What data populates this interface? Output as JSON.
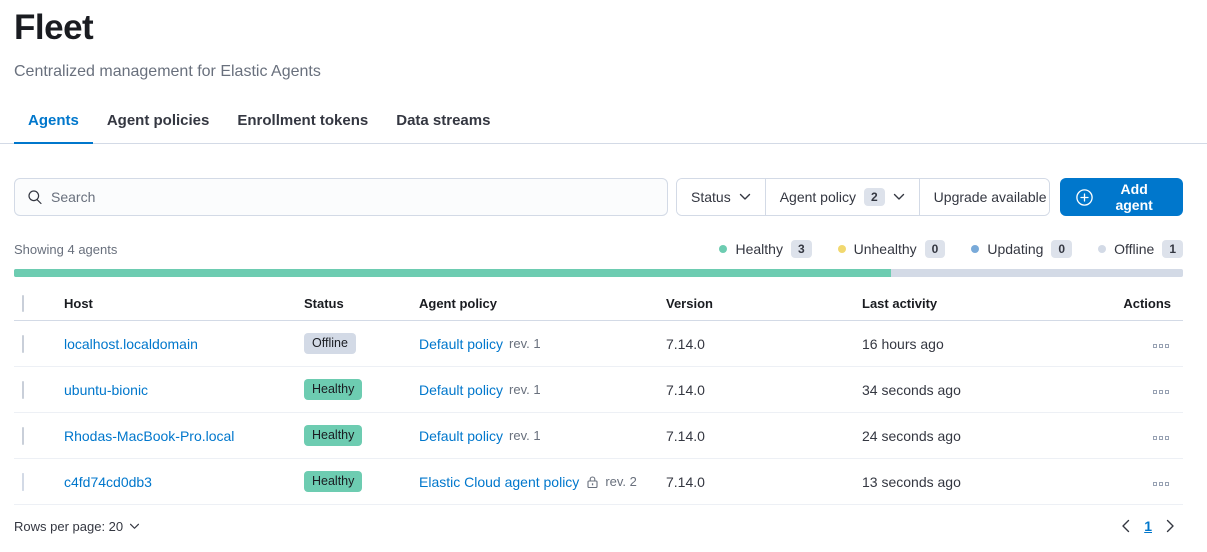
{
  "colors": {
    "primary": "#0077cc",
    "healthy": "#6dccb1",
    "unhealthy": "#f1d86f",
    "updating": "#79aad9",
    "offline": "#d3dae6",
    "progress_track": "#d3dae6"
  },
  "header": {
    "title": "Fleet",
    "subtitle": "Centralized management for Elastic Agents",
    "tabs": [
      {
        "label": "Agents",
        "active": true
      },
      {
        "label": "Agent policies",
        "active": false
      },
      {
        "label": "Enrollment tokens",
        "active": false
      },
      {
        "label": "Data streams",
        "active": false
      }
    ]
  },
  "toolbar": {
    "search_placeholder": "Search",
    "filters": [
      {
        "label": "Status",
        "has_chevron": true
      },
      {
        "label": "Agent policy",
        "count": "2",
        "has_chevron": true
      },
      {
        "label": "Upgrade available",
        "has_chevron": false
      }
    ],
    "add_agent_label": "Add agent"
  },
  "summary": {
    "showing_text": "Showing 4 agents",
    "legend": [
      {
        "label": "Healthy",
        "count": "3",
        "color": "#6dccb1"
      },
      {
        "label": "Unhealthy",
        "count": "0",
        "color": "#f1d86f"
      },
      {
        "label": "Updating",
        "count": "0",
        "color": "#79aad9"
      },
      {
        "label": "Offline",
        "count": "1",
        "color": "#d3dae6"
      }
    ],
    "progress": {
      "healthy_percent": 75,
      "fill_color": "#6dccb1",
      "track_color": "#d3dae6"
    }
  },
  "table": {
    "columns": {
      "host": "Host",
      "status": "Status",
      "policy": "Agent policy",
      "version": "Version",
      "last_activity": "Last activity",
      "actions": "Actions"
    },
    "rows": [
      {
        "host": "localhost.localdomain",
        "status": "Offline",
        "status_color": "#d3dae6",
        "policy": "Default policy",
        "revision": "rev. 1",
        "locked": false,
        "version": "7.14.0",
        "last_activity": "16 hours ago"
      },
      {
        "host": "ubuntu-bionic",
        "status": "Healthy",
        "status_color": "#6dccb1",
        "policy": "Default policy",
        "revision": "rev. 1",
        "locked": false,
        "version": "7.14.0",
        "last_activity": "34 seconds ago"
      },
      {
        "host": "Rhodas-MacBook-Pro.local",
        "status": "Healthy",
        "status_color": "#6dccb1",
        "policy": "Default policy",
        "revision": "rev. 1",
        "locked": false,
        "version": "7.14.0",
        "last_activity": "24 seconds ago"
      },
      {
        "host": "c4fd74cd0db3",
        "status": "Healthy",
        "status_color": "#6dccb1",
        "policy": "Elastic Cloud agent policy",
        "revision": "rev. 2",
        "locked": true,
        "version": "7.14.0",
        "last_activity": "13 seconds ago"
      }
    ]
  },
  "footer": {
    "rows_per_page_label": "Rows per page: 20",
    "page": "1"
  }
}
